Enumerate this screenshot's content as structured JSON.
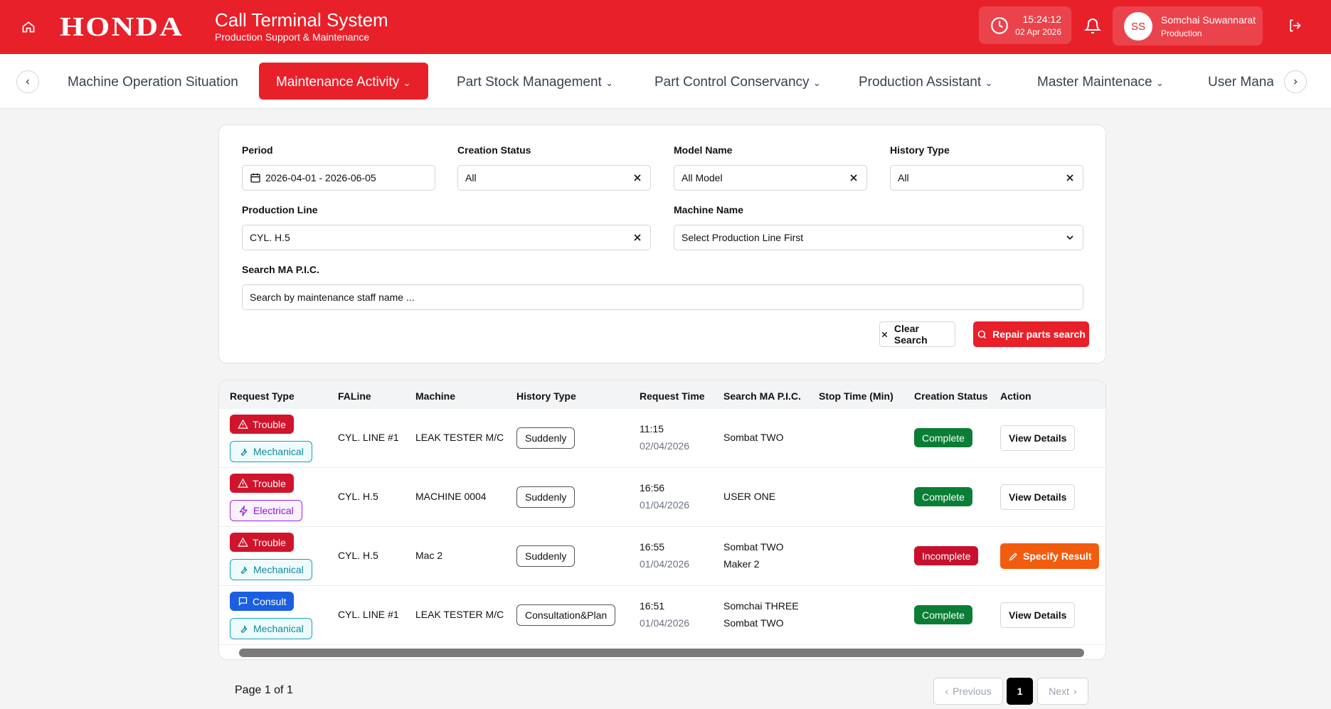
{
  "header": {
    "brand": "HONDA",
    "title": "Call Terminal System",
    "subtitle": "Production Support & Maintenance",
    "time": "15:24:12",
    "date": "02 Apr 2026",
    "avatar": "SS",
    "user": "Somchai Suwannarat",
    "role": "Production"
  },
  "nav": {
    "items": [
      "Machine Operation Situation",
      "Maintenance Activity",
      "Part Stock Management",
      "Part Control Conservancy",
      "Production Assistant",
      "Master Maintenace",
      "User Management"
    ]
  },
  "filters": {
    "fields": [
      {
        "label": "Period",
        "value": "2026-04-01 - 2026-06-05"
      },
      {
        "label": "Creation Status",
        "value": "All"
      },
      {
        "label": "Model Name",
        "value": "All Model"
      },
      {
        "label": "History Type",
        "value": "All"
      },
      {
        "label": "Production Line",
        "value": "CYL. H.5"
      },
      {
        "label": "Machine Name",
        "value": "Select Production Line First"
      },
      {
        "label": "Search MA P.I.C.",
        "value": "Search by maintenance staff name ..."
      }
    ],
    "clear": "Clear Search",
    "search": "Repair parts search"
  },
  "table": {
    "headers": [
      "Request Type",
      "FALine",
      "Machine",
      "History Type",
      "Request Time",
      "Search MA P.I.C.",
      "Stop Time (Min)",
      "Creation Status",
      "Action"
    ],
    "rows": [
      {
        "request_type": "Trouble",
        "category": "Mechanical",
        "faline": "CYL. LINE #1",
        "machine": "LEAK TESTER M/C",
        "history_type": "Suddenly",
        "time": "11:15",
        "date": "02/04/2026",
        "pic": [
          "Sombat TWO"
        ],
        "status": "Complete",
        "action": "View Details"
      },
      {
        "request_type": "Trouble",
        "category": "Electrical",
        "faline": "CYL. H.5",
        "machine": "MACHINE 0004",
        "history_type": "Suddenly",
        "time": "16:56",
        "date": "01/04/2026",
        "pic": [
          "USER ONE"
        ],
        "status": "Complete",
        "action": "View Details"
      },
      {
        "request_type": "Trouble",
        "category": "Mechanical",
        "faline": "CYL. H.5",
        "machine": "Mac 2",
        "history_type": "Suddenly",
        "time": "16:55",
        "date": "01/04/2026",
        "pic": [
          "Sombat TWO",
          "Maker 2"
        ],
        "status": "Incomplete",
        "action": "Specify Result"
      },
      {
        "request_type": "Consult",
        "category": "Mechanical",
        "faline": "CYL. LINE #1",
        "machine": "LEAK TESTER M/C",
        "history_type": "Consultation&Plan",
        "time": "16:51",
        "date": "01/04/2026",
        "pic": [
          "Somchai THREE",
          "Sombat TWO"
        ],
        "status": "Complete",
        "action": "View Details"
      }
    ]
  },
  "pagination": {
    "info": "Page 1 of 1",
    "previous": "Previous",
    "page": "1",
    "next": "Next"
  }
}
